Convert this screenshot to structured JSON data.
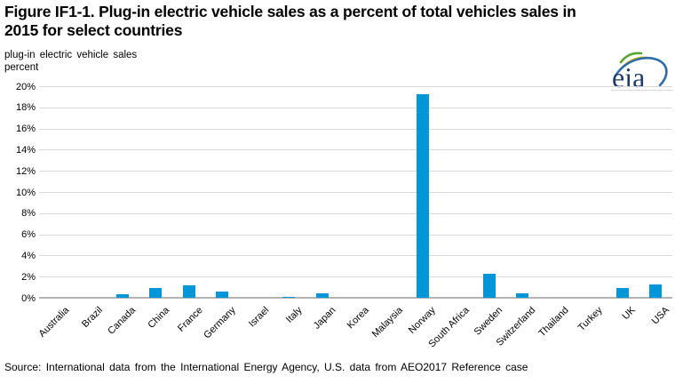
{
  "title_lines": [
    "Figure IF1-1. Plug-in electric vehicle sales as a percent of total vehicles sales in",
    "2015 for select countries"
  ],
  "unit_label": {
    "line1": "plug-in electric vehicle sales",
    "line2": "percent"
  },
  "logo_text": "eia",
  "source_note": "Source: International  data from  the International  Energy  Agency, U.S. data from  AEO2017  Reference  case",
  "colors": {
    "bar": "#0096d7",
    "gridline": "#d9d9d9",
    "axis_line": "#b3b3b3",
    "logo_navy": "#1d3c6d",
    "logo_arc_green": "#58a52f",
    "logo_arc_yellow": "#d2c31d",
    "logo_arc_blue": "#2e6da4"
  },
  "chart_data": {
    "type": "bar",
    "title": "Figure IF1-1. Plug-in electric vehicle sales as a percent of total vehicles sales in 2015 for select countries",
    "ylabel": "plug-in electric vehicle sales, percent",
    "xlabel": "",
    "categories": [
      "Australia",
      "Brazil",
      "Canada",
      "China",
      "France",
      "Germany",
      "Israel",
      "Italy",
      "Japan",
      "Korea",
      "Malaysia",
      "Norway",
      "South Africa",
      "Sweden",
      "Switzerland",
      "Thailand",
      "Turkey",
      "UK",
      "USA"
    ],
    "values": [
      0,
      0,
      0.4,
      1.0,
      1.2,
      0.6,
      0,
      0.15,
      0.5,
      0,
      0,
      19.3,
      0,
      2.3,
      0.5,
      0,
      0,
      1.0,
      1.3
    ],
    "unit": "percent",
    "ylim": [
      0,
      20
    ],
    "ytick_step": 2,
    "yticks": [
      "0%",
      "2%",
      "4%",
      "6%",
      "8%",
      "10%",
      "12%",
      "14%",
      "16%",
      "18%",
      "20%"
    ],
    "grid": true,
    "legend": false,
    "bar_color": "#0096d7"
  }
}
